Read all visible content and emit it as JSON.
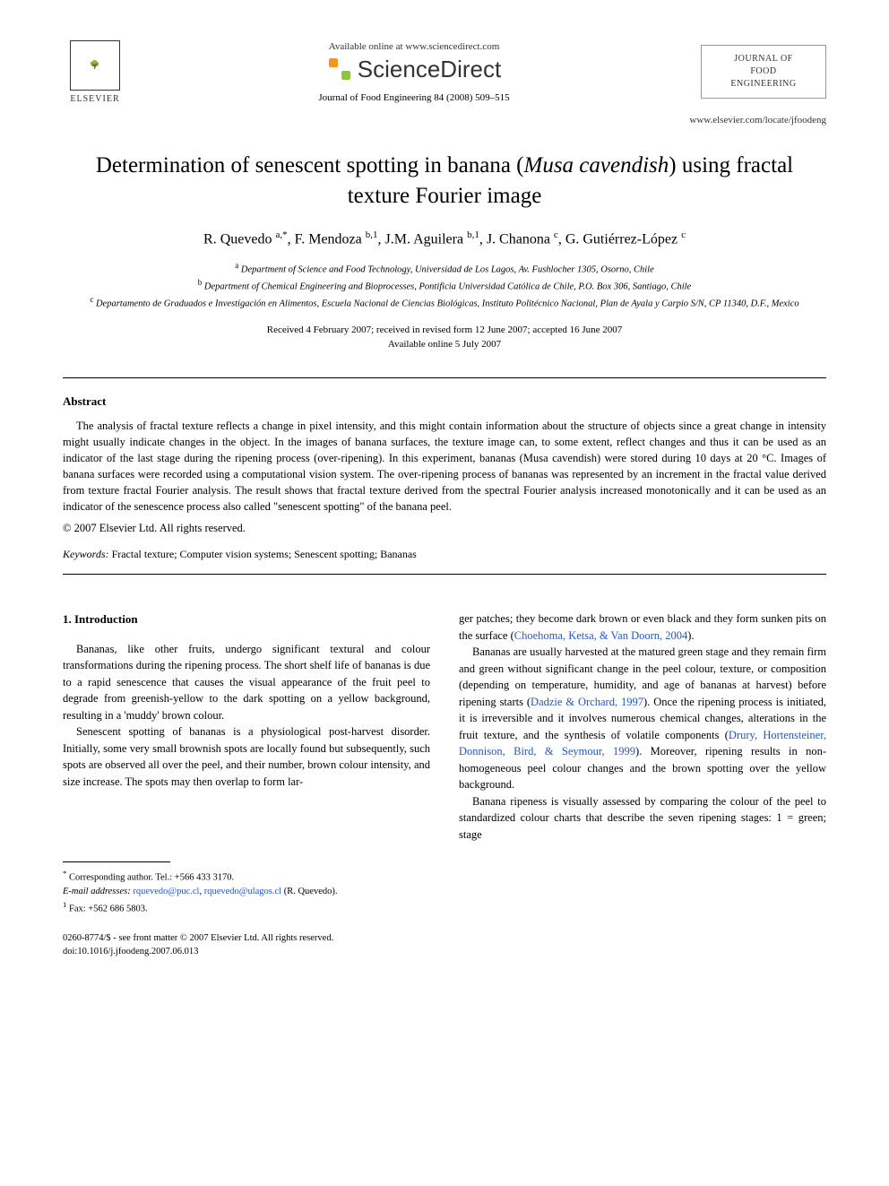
{
  "header": {
    "available_online": "Available online at www.sciencedirect.com",
    "sciencedirect": "ScienceDirect",
    "journal_ref": "Journal of Food Engineering 84 (2008) 509–515",
    "elsevier_label": "ELSEVIER",
    "journal_box_line1": "JOURNAL OF",
    "journal_box_line2": "FOOD",
    "journal_box_line3": "ENGINEERING",
    "journal_url": "www.elsevier.com/locate/jfoodeng"
  },
  "title_line1": "Determination of senescent spotting in banana (",
  "title_italic": "Musa cavendish",
  "title_line2": ") using fractal texture Fourier image",
  "authors_html": "R. Quevedo <sup>a,*</sup>, F. Mendoza <sup>b,1</sup>, J.M. Aguilera <sup>b,1</sup>, J. Chanona <sup>c</sup>, G. Gutiérrez-López <sup>c</sup>",
  "affiliations": {
    "a": "Department of Science and Food Technology, Universidad de Los Lagos, Av. Fushlocher 1305, Osorno, Chile",
    "b": "Department of Chemical Engineering and Bioprocesses, Pontificia Universidad Católica de Chile, P.O. Box 306, Santiago, Chile",
    "c": "Departamento de Graduados e Investigación en Alimentos, Escuela Nacional de Ciencias Biológicas, Instituto Politécnico Nacional, Plan de Ayala y Carpio S/N, CP 11340, D.F., Mexico"
  },
  "dates_line1": "Received 4 February 2007; received in revised form 12 June 2007; accepted 16 June 2007",
  "dates_line2": "Available online 5 July 2007",
  "abstract_heading": "Abstract",
  "abstract_body": "The analysis of fractal texture reflects a change in pixel intensity, and this might contain information about the structure of objects since a great change in intensity might usually indicate changes in the object. In the images of banana surfaces, the texture image can, to some extent, reflect changes and thus it can be used as an indicator of the last stage during the ripening process (over-ripening). In this experiment, bananas (Musa cavendish) were stored during 10 days at 20 °C. Images of banana surfaces were recorded using a computational vision system. The over-ripening process of bananas was represented by an increment in the fractal value derived from texture fractal Fourier analysis. The result shows that fractal texture derived from the spectral Fourier analysis increased monotonically and it can be used as an indicator of the senescence process also called \"senescent spotting\" of the banana peel.",
  "copyright": "© 2007 Elsevier Ltd. All rights reserved.",
  "keywords_label": "Keywords:",
  "keywords_value": " Fractal texture; Computer vision systems; Senescent spotting; Bananas",
  "intro_heading": "1. Introduction",
  "col1_p1": "Bananas, like other fruits, undergo significant textural and colour transformations during the ripening process. The short shelf life of bananas is due to a rapid senescence that causes the visual appearance of the fruit peel to degrade from greenish-yellow to the dark spotting on a yellow background, resulting in a 'muddy' brown colour.",
  "col1_p2": "Senescent spotting of bananas is a physiological post-harvest disorder. Initially, some very small brownish spots are locally found but subsequently, such spots are observed all over the peel, and their number, brown colour intensity, and size increase. The spots may then overlap to form lar-",
  "col2_p1_a": "ger patches; they become dark brown or even black and they form sunken pits on the surface (",
  "col2_p1_cite": "Choehoma, Ketsa, & Van Doorn, 2004",
  "col2_p1_b": ").",
  "col2_p2_a": "Bananas are usually harvested at the matured green stage and they remain firm and green without significant change in the peel colour, texture, or composition (depending on temperature, humidity, and age of bananas at harvest) before ripening starts (",
  "col2_p2_cite1": "Dadzie & Orchard, 1997",
  "col2_p2_b": "). Once the ripening process is initiated, it is irreversible and it involves numerous chemical changes, alterations in the fruit texture, and the synthesis of volatile components (",
  "col2_p2_cite2": "Drury, Hortensteiner, Donnison, Bird, & Seymour, 1999",
  "col2_p2_c": "). Moreover, ripening results in non-homogeneous peel colour changes and the brown spotting over the yellow background.",
  "col2_p3": "Banana ripeness is visually assessed by comparing the colour of the peel to standardized colour charts that describe the seven ripening stages: 1 = green; stage",
  "footnotes": {
    "corr": "Corresponding author. Tel.: +566 433 3170.",
    "email_label": "E-mail addresses:",
    "email1": "rquevedo@puc.cl",
    "email_sep": ", ",
    "email2": "rquevedo@ulagos.cl",
    "email_tail": " (R. Quevedo).",
    "fax": "Fax: +562 686 5803."
  },
  "footer": {
    "line1": "0260-8774/$ - see front matter © 2007 Elsevier Ltd. All rights reserved.",
    "line2": "doi:10.1016/j.jfoodeng.2007.06.013"
  },
  "colors": {
    "link": "#2357c5",
    "text": "#000000",
    "background": "#ffffff"
  }
}
